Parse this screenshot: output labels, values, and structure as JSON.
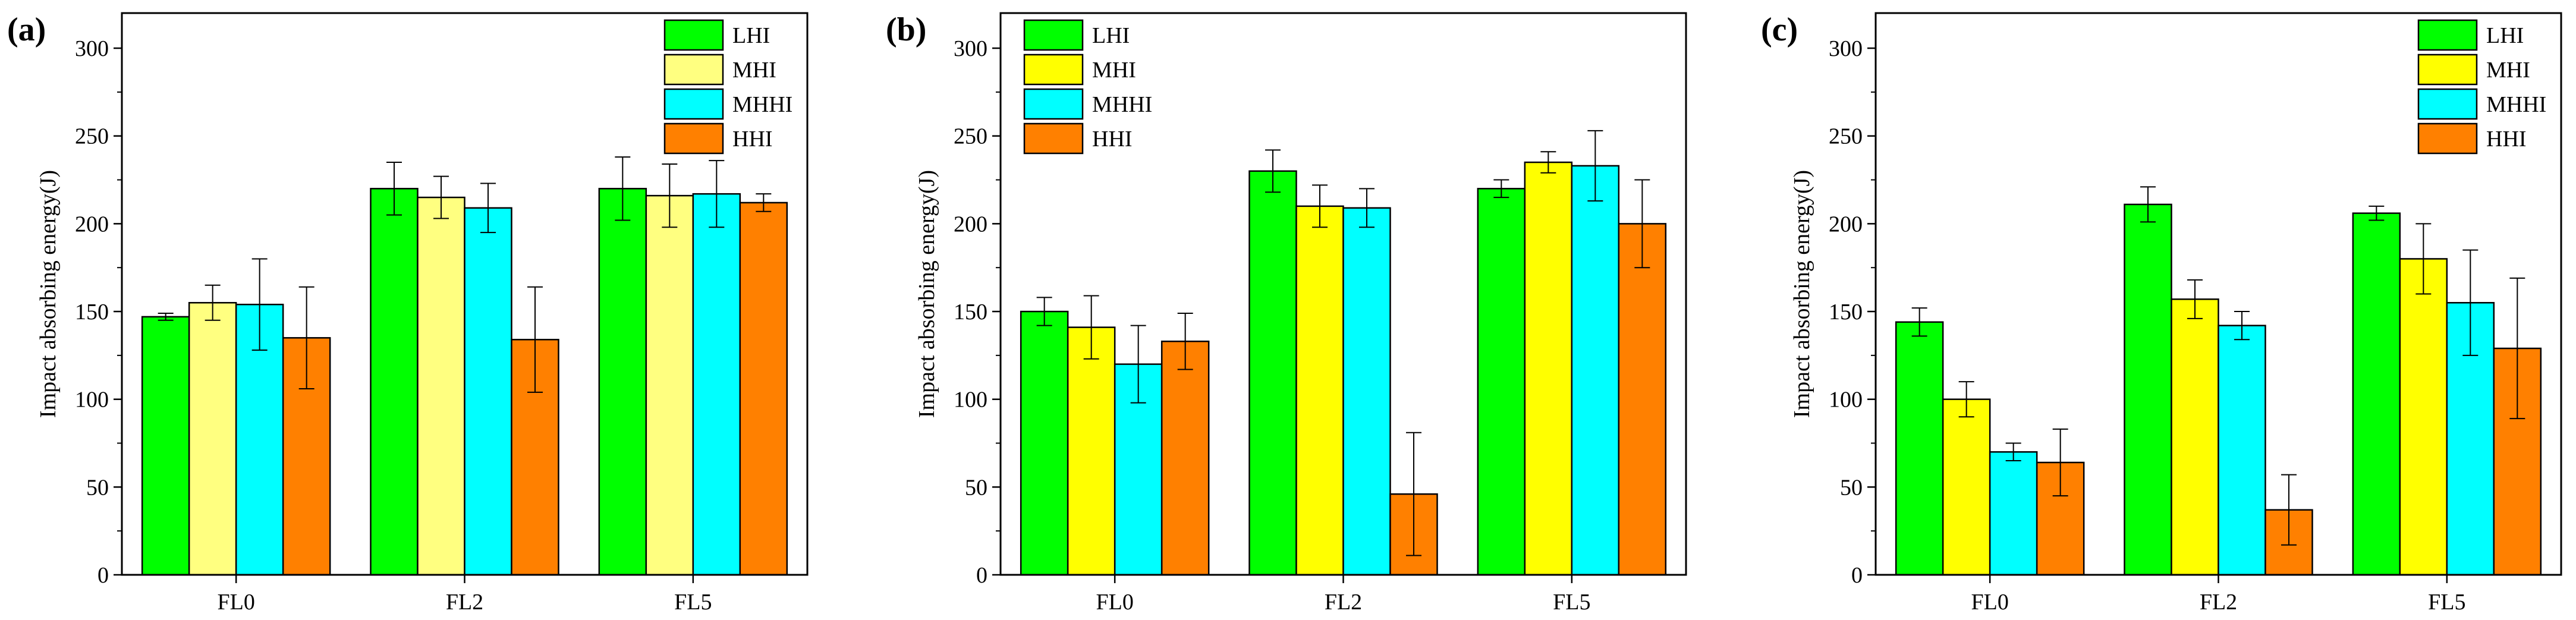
{
  "chart_data": [
    {
      "type": "bar",
      "panel_label": "(a)",
      "categories": [
        "FL0",
        "FL2",
        "FL5"
      ],
      "ylabel": "Impact absorbing energy(J)",
      "xlabel": "",
      "ylim": [
        0,
        320
      ],
      "yticks": [
        0,
        50,
        100,
        150,
        200,
        250,
        300
      ],
      "legend_position": "top-right",
      "series": [
        {
          "name": "LHI",
          "color": "#00ff00",
          "values": [
            147,
            220,
            220
          ],
          "errors": [
            2,
            15,
            18
          ]
        },
        {
          "name": "MHI",
          "color": "#ffff80",
          "values": [
            155,
            215,
            216
          ],
          "errors": [
            10,
            12,
            18
          ]
        },
        {
          "name": "MHHI",
          "color": "#00ffff",
          "values": [
            154,
            209,
            217
          ],
          "errors": [
            26,
            14,
            19
          ]
        },
        {
          "name": "HHI",
          "color": "#ff8000",
          "values": [
            135,
            134,
            212
          ],
          "errors": [
            29,
            30,
            5
          ]
        }
      ]
    },
    {
      "type": "bar",
      "panel_label": "(b)",
      "categories": [
        "FL0",
        "FL2",
        "FL5"
      ],
      "ylabel": "Impact absorbing energy(J)",
      "xlabel": "",
      "ylim": [
        0,
        320
      ],
      "yticks": [
        0,
        50,
        100,
        150,
        200,
        250,
        300
      ],
      "legend_position": "top-left",
      "series": [
        {
          "name": "LHI",
          "color": "#00ff00",
          "values": [
            150,
            230,
            220
          ],
          "errors": [
            8,
            12,
            5
          ]
        },
        {
          "name": "MHI",
          "color": "#ffff00",
          "values": [
            141,
            210,
            235
          ],
          "errors": [
            18,
            12,
            6
          ]
        },
        {
          "name": "MHHI",
          "color": "#00ffff",
          "values": [
            120,
            209,
            233
          ],
          "errors": [
            22,
            11,
            20
          ]
        },
        {
          "name": "HHI",
          "color": "#ff8000",
          "values": [
            133,
            46,
            200
          ],
          "errors": [
            16,
            35,
            25
          ]
        }
      ]
    },
    {
      "type": "bar",
      "panel_label": "(c)",
      "categories": [
        "FL0",
        "FL2",
        "FL5"
      ],
      "ylabel": "Impact absorbing energy(J)",
      "xlabel": "",
      "ylim": [
        0,
        320
      ],
      "yticks": [
        0,
        50,
        100,
        150,
        200,
        250,
        300
      ],
      "legend_position": "top-right",
      "series": [
        {
          "name": "LHI",
          "color": "#00ff00",
          "values": [
            144,
            211,
            206
          ],
          "errors": [
            8,
            10,
            4
          ]
        },
        {
          "name": "MHI",
          "color": "#ffff00",
          "values": [
            100,
            157,
            180
          ],
          "errors": [
            10,
            11,
            20
          ]
        },
        {
          "name": "MHHI",
          "color": "#00ffff",
          "values": [
            70,
            142,
            155
          ],
          "errors": [
            5,
            8,
            30
          ]
        },
        {
          "name": "HHI",
          "color": "#ff8000",
          "values": [
            64,
            37,
            129
          ],
          "errors": [
            19,
            20,
            40
          ]
        }
      ]
    }
  ]
}
